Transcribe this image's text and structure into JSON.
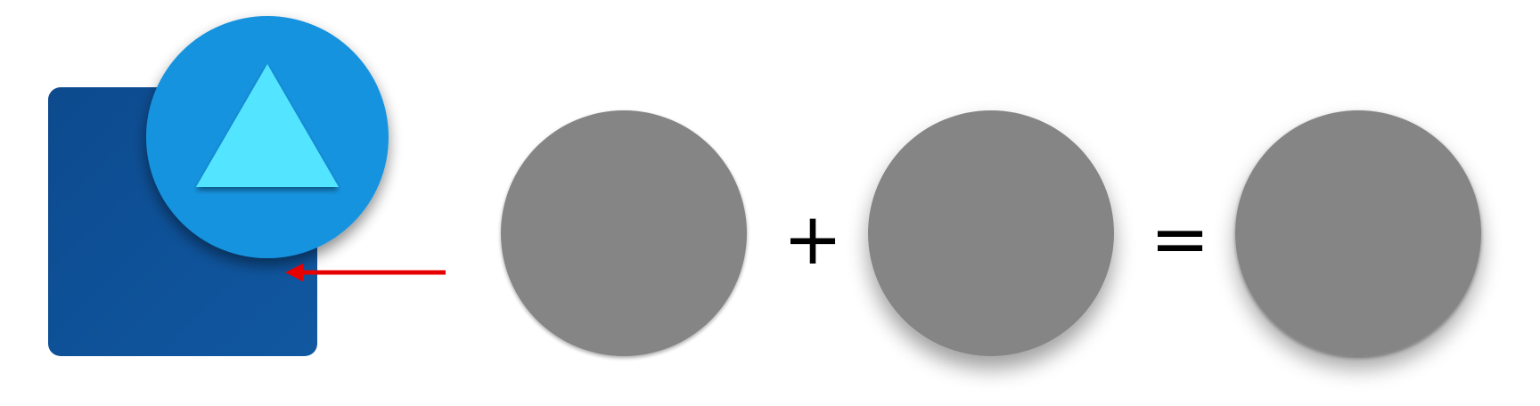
{
  "diagram": {
    "operators": {
      "plus": "+",
      "equals": "="
    },
    "colors": {
      "card": "#0f4f93",
      "card_highlight": "#1360a8",
      "badge": "#1593df",
      "triangle": "#52e5ff",
      "arrow": "#e60000",
      "gray_circle": "#858585",
      "text": "#000000"
    },
    "icons": [
      "app-card",
      "triangle-badge",
      "arrow-left",
      "shadow-circle"
    ]
  }
}
